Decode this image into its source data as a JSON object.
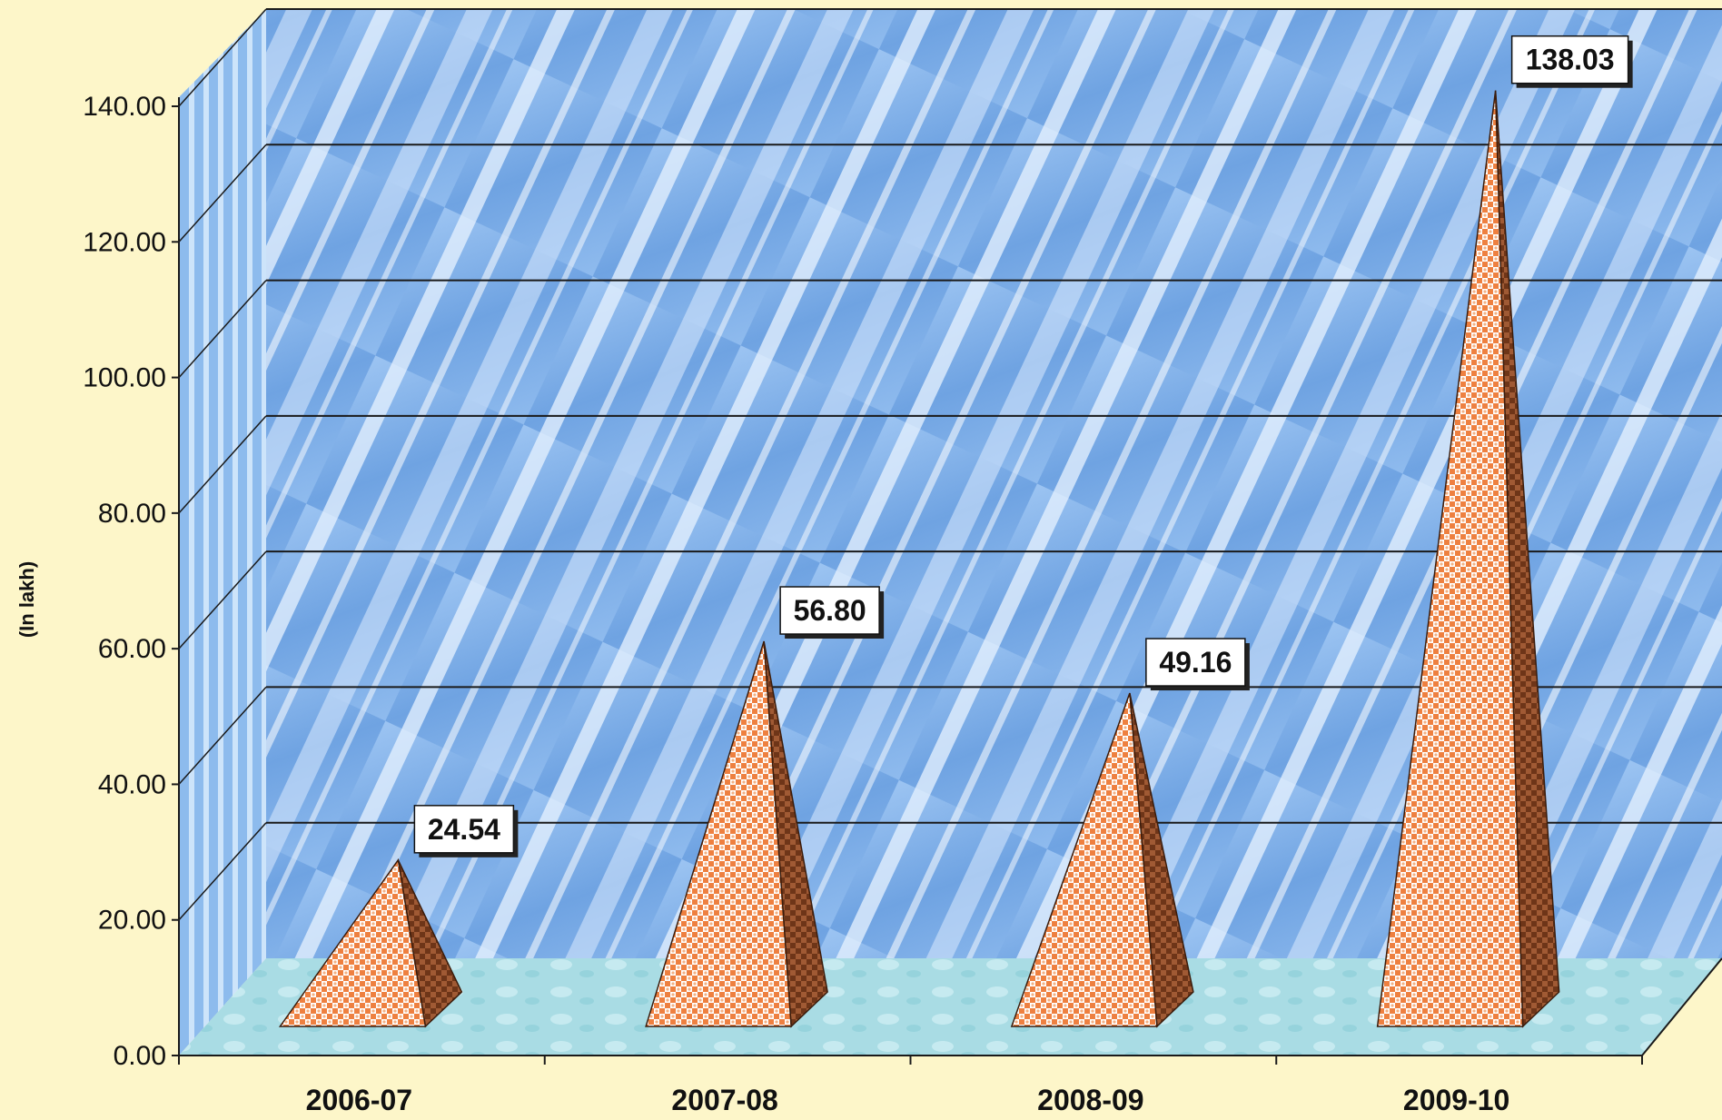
{
  "chart_data": {
    "type": "bar",
    "bar_shape": "pyramid",
    "title": "",
    "xlabel": "",
    "ylabel": "(In lakh)",
    "categories": [
      "2006-07",
      "2007-08",
      "2008-09",
      "2009-10"
    ],
    "values": [
      24.54,
      56.8,
      49.16,
      138.03
    ],
    "data_labels": [
      "24.54",
      "56.80",
      "49.16",
      "138.03"
    ],
    "ylim": [
      0,
      140
    ],
    "yticks": [
      0,
      20,
      40,
      60,
      80,
      100,
      120,
      140
    ],
    "ytick_labels": [
      "0.00",
      "20.00",
      "40.00",
      "60.00",
      "80.00",
      "100.00",
      "120.00",
      "140.00"
    ],
    "grid": true,
    "legend": "none",
    "is_3d": true,
    "colors": {
      "page_background": "#fdf6c9",
      "wall": "#7fb0e6",
      "floor": "#a9dce4",
      "bar_front": "#f08a4b",
      "bar_side": "#8a4a2a",
      "grid": "#1a1a1a"
    }
  }
}
